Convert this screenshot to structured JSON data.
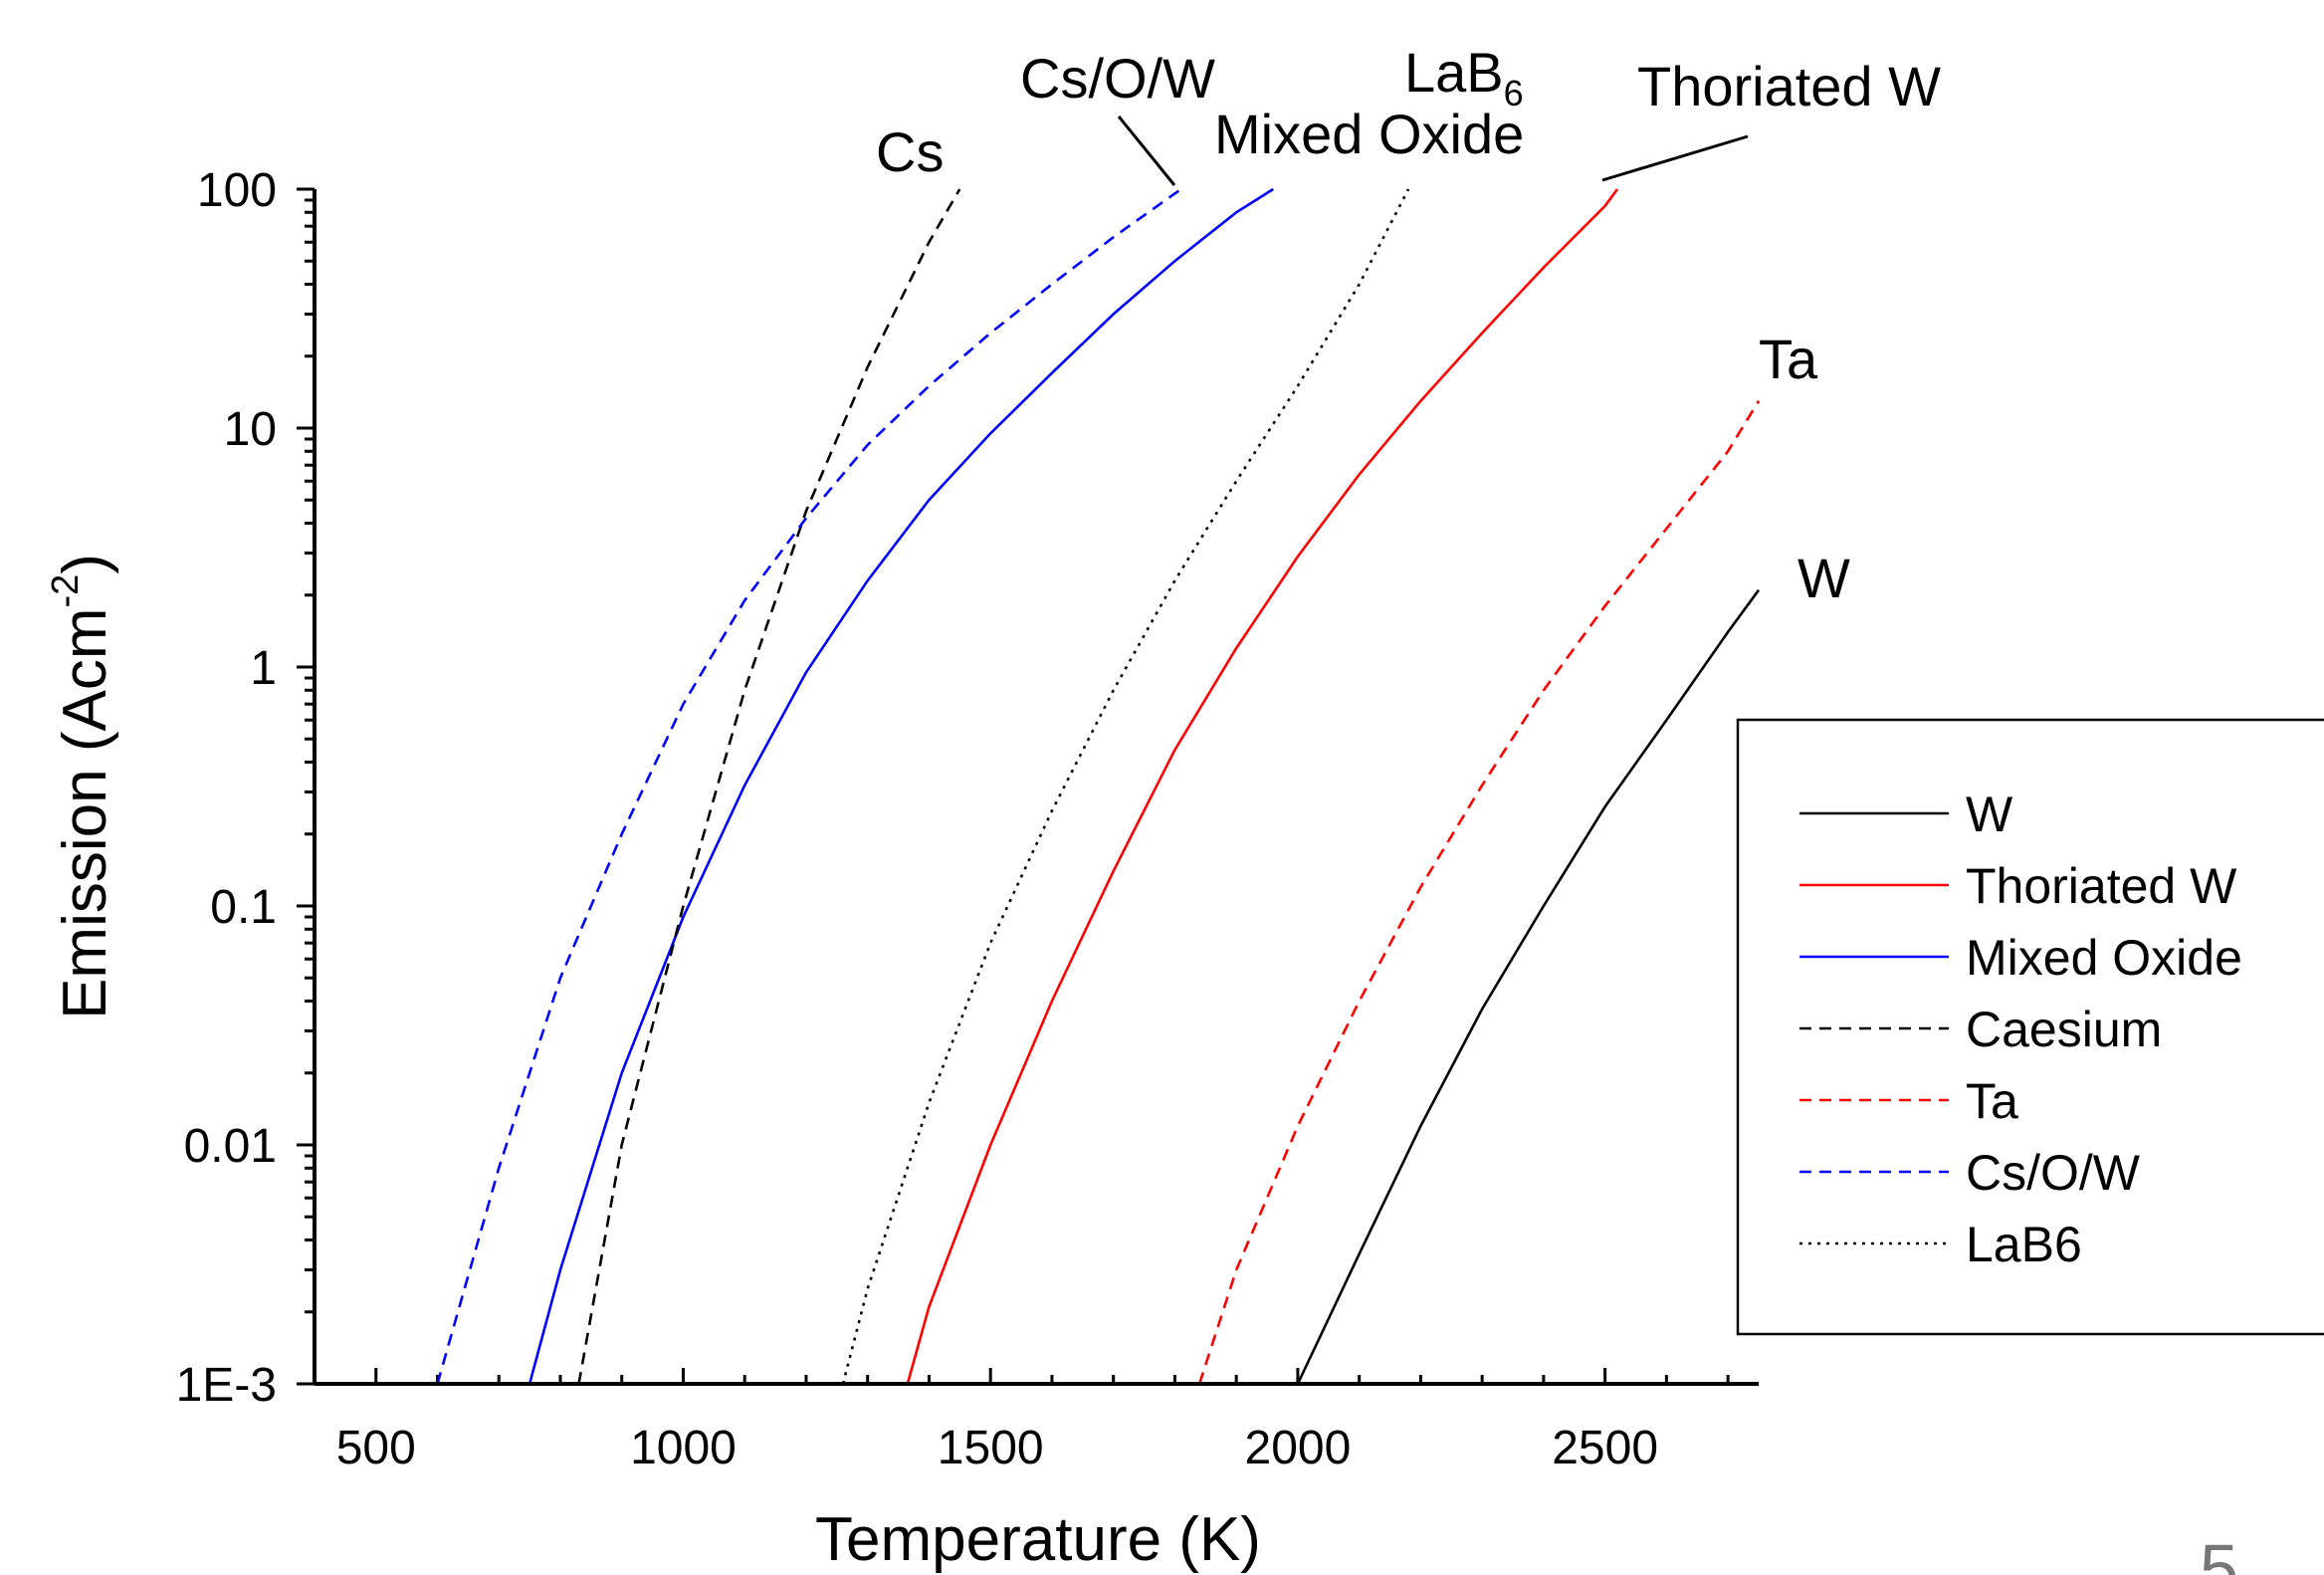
{
  "chart_data": {
    "type": "line",
    "xlabel": "Temperature (K)",
    "ylabel": {
      "base": "Emission (Acm",
      "sup": "-2",
      "end": ")"
    },
    "xscale": "linear",
    "yscale": "log",
    "xlim": [
      400,
      2750
    ],
    "ylim": [
      0.001,
      100
    ],
    "xticks": [
      500,
      1000,
      1500,
      2000,
      2500
    ],
    "xtick_labels": [
      "500",
      "1000",
      "1500",
      "2000",
      "2500"
    ],
    "yticks": [
      0.001,
      0.01,
      0.1,
      1,
      10,
      100
    ],
    "ytick_labels": [
      "1E-3",
      "0.01",
      "0.1",
      "1",
      "10",
      "100"
    ],
    "legend_position": "right",
    "series": [
      {
        "name": "W",
        "color": "#000000",
        "dash": "solid",
        "x": [
          2000,
          2100,
          2200,
          2300,
          2400,
          2500,
          2600,
          2700,
          2750
        ],
        "y": [
          0.001,
          0.0035,
          0.012,
          0.037,
          0.1,
          0.26,
          0.6,
          1.4,
          2.1
        ]
      },
      {
        "name": "Thoriated W",
        "color": "#ff0000",
        "dash": "solid",
        "x": [
          1365,
          1400,
          1500,
          1600,
          1700,
          1800,
          1900,
          2000,
          2100,
          2200,
          2300,
          2400,
          2500,
          2520
        ],
        "y": [
          0.001,
          0.0021,
          0.01,
          0.04,
          0.14,
          0.45,
          1.2,
          2.9,
          6.4,
          13,
          25,
          47,
          85,
          100
        ]
      },
      {
        "name": "Mixed Oxide",
        "color": "#0000ff",
        "dash": "solid",
        "x": [
          750,
          800,
          900,
          1000,
          1100,
          1200,
          1300,
          1400,
          1500,
          1600,
          1700,
          1800,
          1900,
          1960
        ],
        "y": [
          0.001,
          0.003,
          0.02,
          0.09,
          0.32,
          0.95,
          2.3,
          5,
          9.5,
          17,
          30,
          50,
          80,
          100
        ]
      },
      {
        "name": "Caesium",
        "color": "#000000",
        "dash": "dashed",
        "x": [
          830,
          900,
          1000,
          1100,
          1200,
          1300,
          1400,
          1450
        ],
        "y": [
          0.001,
          0.01,
          0.1,
          0.8,
          4.5,
          18,
          60,
          100
        ]
      },
      {
        "name": "Ta",
        "color": "#ff0000",
        "dash": "dashed",
        "x": [
          1840,
          1900,
          2000,
          2100,
          2200,
          2300,
          2400,
          2500,
          2600,
          2700,
          2750
        ],
        "y": [
          0.001,
          0.003,
          0.012,
          0.04,
          0.12,
          0.32,
          0.8,
          1.8,
          3.8,
          8,
          13
        ]
      },
      {
        "name": "Cs/O/W",
        "color": "#0000ff",
        "dash": "dashed",
        "x": [
          600,
          700,
          800,
          900,
          1000,
          1100,
          1200,
          1300,
          1400,
          1500,
          1600,
          1700,
          1810
        ],
        "y": [
          0.001,
          0.008,
          0.05,
          0.2,
          0.7,
          1.9,
          4.2,
          8.5,
          15,
          25,
          40,
          63,
          100
        ]
      },
      {
        "name": "LaB6",
        "color": "#000000",
        "dash": "dotted",
        "x": [
          1260,
          1300,
          1400,
          1500,
          1600,
          1700,
          1800,
          1900,
          2000,
          2100,
          2180
        ],
        "y": [
          0.001,
          0.0025,
          0.015,
          0.07,
          0.25,
          0.8,
          2.3,
          6,
          15,
          40,
          100
        ]
      }
    ],
    "annotations": [
      {
        "name": "cs-label",
        "text": "Cs"
      },
      {
        "name": "csow-label",
        "text": "Cs/O/W"
      },
      {
        "name": "lab6-label",
        "text": "LaB",
        "sub": "6"
      },
      {
        "name": "mixed-oxide-label",
        "text": "Mixed Oxide"
      },
      {
        "name": "thoriated-w-label",
        "text": "Thoriated W"
      },
      {
        "name": "ta-label",
        "text": "Ta"
      },
      {
        "name": "w-label",
        "text": "W"
      }
    ]
  }
}
